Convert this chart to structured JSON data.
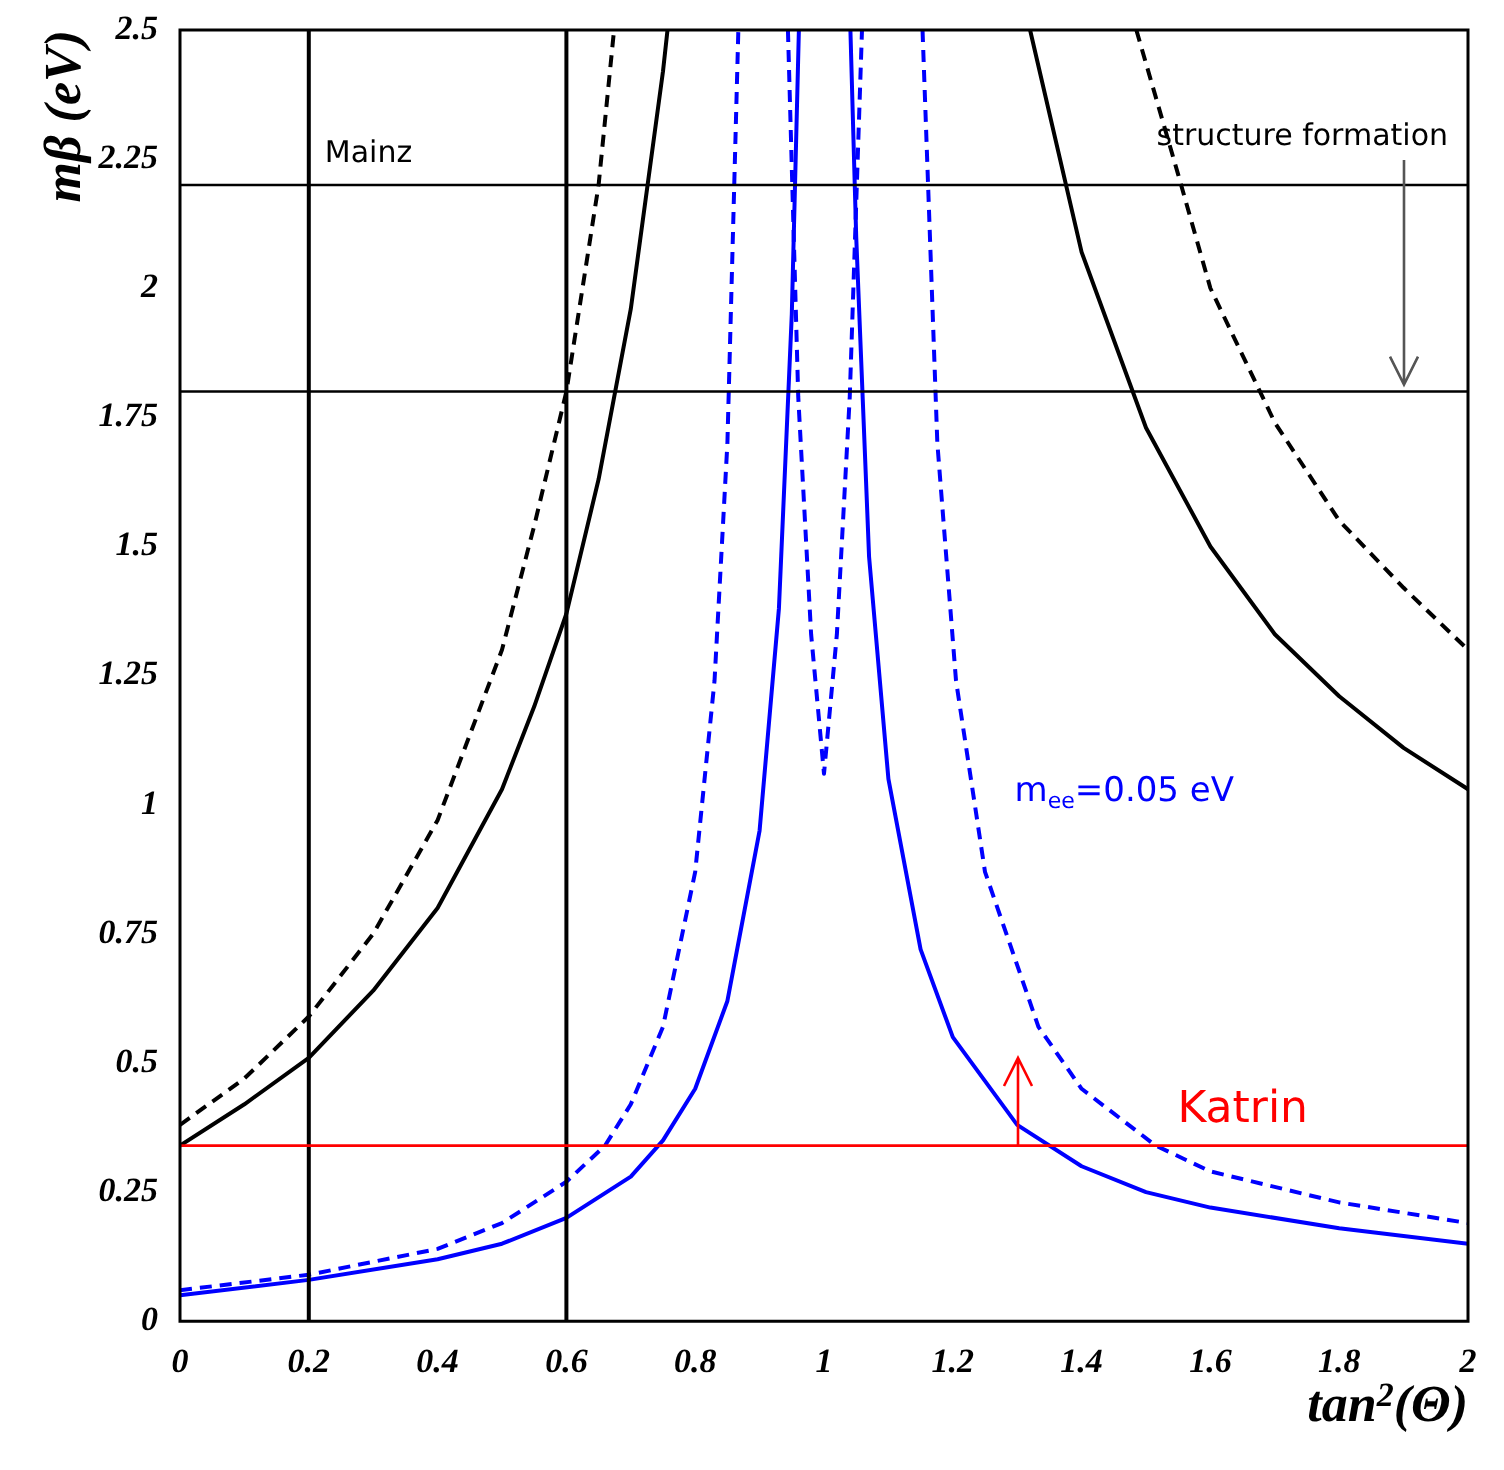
{
  "chart_data": {
    "type": "line",
    "xlabel": "tan$^{2}$(Θ)",
    "ylabel": "mβ (eV)",
    "xlim": [
      0,
      2
    ],
    "xticks": [
      0,
      0.2,
      0.4,
      0.6,
      0.8,
      1,
      1.2,
      1.4,
      1.6,
      1.8,
      2
    ],
    "ylim": [
      0,
      2.5
    ],
    "yticks": [
      0,
      0.25,
      0.5,
      0.75,
      1,
      1.25,
      1.5,
      1.75,
      2,
      2.25,
      2.5
    ],
    "marker": "none",
    "legend": false,
    "series": [
      {
        "color": "#000000",
        "line_style": "solid",
        "x": [
          0,
          0.1,
          0.2,
          0.3,
          0.4,
          0.5,
          0.55,
          0.6,
          0.65,
          0.7,
          0.75,
          0.757,
          1,
          1.32,
          1.4,
          1.5,
          1.6,
          1.7,
          1.8,
          1.9,
          2
        ],
        "values": [
          0.34,
          0.42,
          0.51,
          0.64,
          0.8,
          1.03,
          1.19,
          1.37,
          1.63,
          1.96,
          2.42,
          2.5,
          null,
          2.5,
          2.07,
          1.73,
          1.5,
          1.33,
          1.21,
          1.11,
          1.03
        ]
      },
      {
        "color": "#000000",
        "line_style": "dashed",
        "x": [
          0,
          0.1,
          0.2,
          0.3,
          0.4,
          0.5,
          0.55,
          0.6,
          0.65,
          0.674,
          1,
          1.485,
          1.55,
          1.6,
          1.7,
          1.8,
          1.9,
          2
        ],
        "values": [
          0.38,
          0.47,
          0.59,
          0.75,
          0.97,
          1.3,
          1.54,
          1.8,
          2.2,
          2.5,
          null,
          2.5,
          2.22,
          2.0,
          1.74,
          1.55,
          1.42,
          1.3
        ]
      },
      {
        "color": "#0000ff",
        "line_style": "solid",
        "x": [
          0,
          0.2,
          0.4,
          0.5,
          0.6,
          0.7,
          0.75,
          0.8,
          0.85,
          0.9,
          0.93,
          0.95,
          0.961,
          1,
          1.041,
          1.05,
          1.07,
          1.1,
          1.15,
          1.2,
          1.3,
          1.4,
          1.5,
          1.6,
          1.8,
          2
        ],
        "values": [
          0.05,
          0.08,
          0.12,
          0.15,
          0.2,
          0.28,
          0.35,
          0.45,
          0.62,
          0.95,
          1.38,
          1.95,
          2.5,
          null,
          2.5,
          2.1,
          1.48,
          1.05,
          0.72,
          0.55,
          0.38,
          0.3,
          0.25,
          0.22,
          0.18,
          0.15
        ]
      },
      {
        "color": "#0000ff",
        "line_style": "dashed",
        "x": [
          0,
          0.2,
          0.4,
          0.5,
          0.6,
          0.66,
          0.7,
          0.75,
          0.8,
          0.83,
          0.85,
          0.867,
          0.9,
          0.944,
          0.96,
          0.98,
          1,
          1.02,
          1.04,
          1.059,
          1.1,
          1.153,
          1.176,
          1.205,
          1.25,
          1.333,
          1.4,
          1.515,
          1.6,
          1.8,
          2
        ],
        "values": [
          0.06,
          0.09,
          0.14,
          0.19,
          0.27,
          0.34,
          0.42,
          0.57,
          0.87,
          1.24,
          1.7,
          2.5,
          null,
          2.5,
          1.79,
          1.33,
          1.06,
          1.33,
          1.79,
          2.5,
          null,
          2.5,
          1.7,
          1.24,
          0.87,
          0.57,
          0.45,
          0.34,
          0.29,
          0.23,
          0.19
        ]
      }
    ],
    "ref_lines": [
      {
        "axis": "x",
        "value": 0.2,
        "label": "Mainz",
        "color": "#000000"
      },
      {
        "axis": "x",
        "value": 0.6,
        "color": "#000000"
      },
      {
        "axis": "y",
        "value": 2.2,
        "label": "structure formation",
        "color": "#000000"
      },
      {
        "axis": "y",
        "value": 1.8,
        "color": "#000000"
      },
      {
        "axis": "y",
        "value": 0.34,
        "label": "Katrin",
        "color": "#ff0000"
      }
    ],
    "annotations": [
      "m$_{ee}$=0.05 eV"
    ]
  }
}
